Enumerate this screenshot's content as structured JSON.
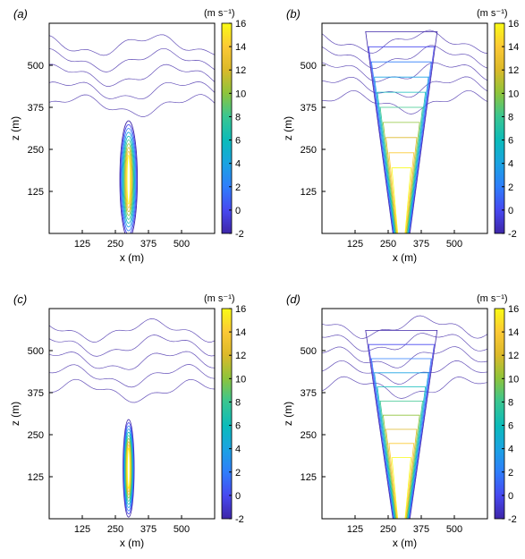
{
  "chart_data": [
    {
      "panel": "(a)",
      "type": "contour",
      "xlabel": "x (m)",
      "ylabel": "z (m)",
      "xlim": [
        0,
        625
      ],
      "ylim": [
        0,
        625
      ],
      "xticks": [
        125,
        250,
        375,
        500
      ],
      "yticks": [
        125,
        250,
        375,
        500
      ],
      "colorbar": {
        "unit": "(m s⁻¹)",
        "range": [
          -2,
          16
        ],
        "ticks": [
          -2,
          0,
          2,
          4,
          6,
          8,
          10,
          12,
          14,
          16
        ]
      },
      "contour_range": [
        -2,
        16
      ],
      "jet": {
        "x_center": 300,
        "z_peak": 140,
        "z_top": 360,
        "max_speed": 16
      }
    },
    {
      "panel": "(b)",
      "type": "contour",
      "xlabel": "x (m)",
      "ylabel": "z (m)",
      "xlim": [
        0,
        625
      ],
      "ylim": [
        0,
        625
      ],
      "xticks": [
        125,
        250,
        375,
        500
      ],
      "yticks": [
        125,
        250,
        375,
        500
      ],
      "colorbar": {
        "unit": "(m s⁻¹)",
        "range": [
          -2,
          16
        ],
        "ticks": [
          -2,
          0,
          2,
          4,
          6,
          8,
          10,
          12,
          14,
          16
        ]
      },
      "contour_range": [
        -2,
        16
      ],
      "jet": {
        "x_center": 300,
        "z_peak": 100,
        "z_top": 600,
        "max_speed": 16
      }
    },
    {
      "panel": "(c)",
      "type": "contour",
      "xlabel": "x (m)",
      "ylabel": "z (m)",
      "xlim": [
        0,
        625
      ],
      "ylim": [
        0,
        625
      ],
      "xticks": [
        125,
        250,
        375,
        500
      ],
      "yticks": [
        125,
        250,
        375,
        500
      ],
      "colorbar": {
        "unit": "(m s⁻¹)",
        "range": [
          -2,
          16
        ],
        "ticks": [
          -2,
          0,
          2,
          4,
          6,
          8,
          10,
          12,
          14,
          16
        ]
      },
      "contour_range": [
        -2,
        16
      ],
      "jet": {
        "x_center": 300,
        "z_peak": 150,
        "z_top": 300,
        "max_speed": 16
      }
    },
    {
      "panel": "(d)",
      "type": "contour",
      "xlabel": "x (m)",
      "ylabel": "z (m)",
      "xlim": [
        0,
        625
      ],
      "ylim": [
        0,
        625
      ],
      "xticks": [
        125,
        250,
        375,
        500
      ],
      "yticks": [
        125,
        250,
        375,
        500
      ],
      "colorbar": {
        "unit": "(m s⁻¹)",
        "range": [
          -2,
          16
        ],
        "ticks": [
          -2,
          0,
          2,
          4,
          6,
          8,
          10,
          12,
          14,
          16
        ]
      },
      "contour_range": [
        -2,
        16
      ],
      "jet": {
        "x_center": 300,
        "z_peak": 90,
        "z_top": 560,
        "max_speed": 16
      }
    }
  ],
  "colormap": [
    "#3e26a8",
    "#4748f0",
    "#2f7dfb",
    "#1ba2e3",
    "#0bbbbb",
    "#3bc68f",
    "#8fc43a",
    "#dcb92a",
    "#fcc935",
    "#f9fb15"
  ]
}
